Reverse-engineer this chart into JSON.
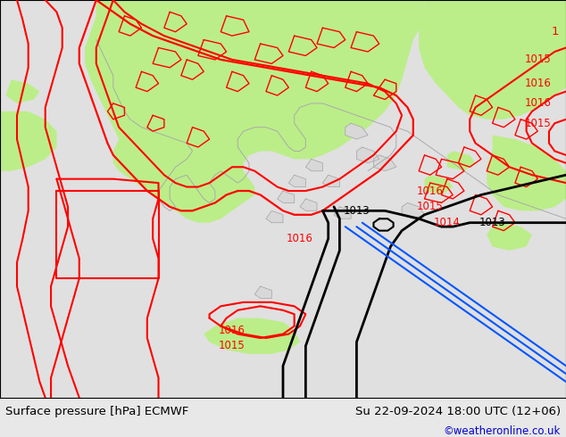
{
  "title_left": "Surface pressure [hPa] ECMWF",
  "title_right": "Su 22-09-2024 18:00 UTC (12+06)",
  "credit": "©weatheronline.co.uk",
  "bg_color": "#e8e8e8",
  "sea_color": "#e0e0e0",
  "green_color": "#bbee88",
  "land_outline_color": "#aaaaaa",
  "red_color": "#ff0000",
  "black_color": "#000000",
  "blue_color": "#0055ff",
  "label_fontsize": 8.5,
  "title_fontsize": 9.5,
  "credit_color": "#0000cc"
}
